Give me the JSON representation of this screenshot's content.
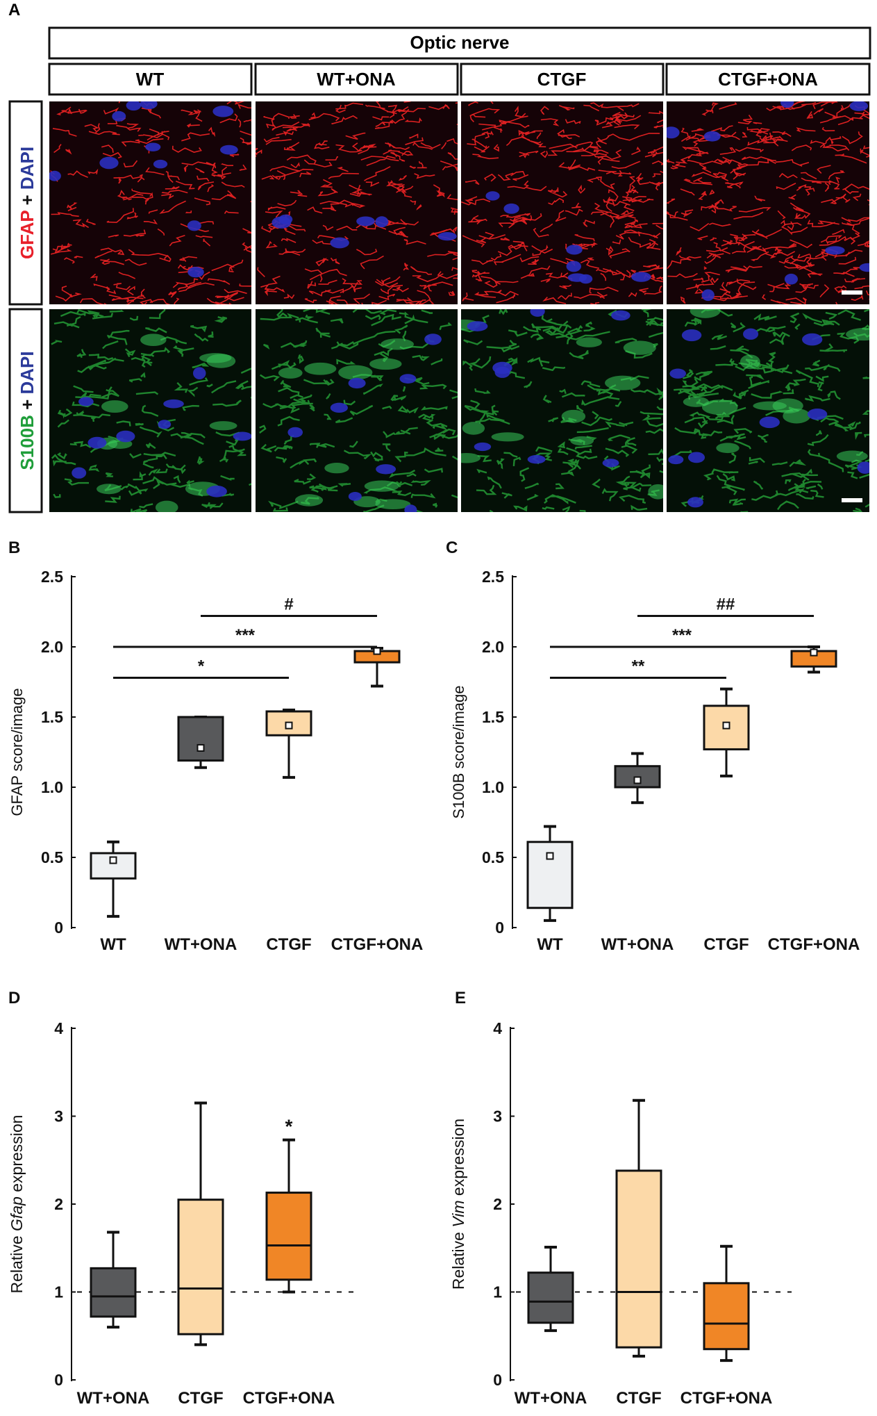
{
  "panel_a": {
    "letter": "A",
    "region_label": "Optic nerve",
    "columns": [
      "WT",
      "WT+ONA",
      "CTGF",
      "CTGF+ONA"
    ],
    "rows": [
      {
        "stain": "GFAP",
        "plus": " + ",
        "counter": "DAPI",
        "stain_color": "#e8202a",
        "counter_color": "#2b3a9a",
        "fiber_color": "#ff2626",
        "bg_color": "#150307"
      },
      {
        "stain": "S100B",
        "plus": " + ",
        "counter": "DAPI",
        "stain_color": "#1f9e3a",
        "counter_color": "#2b3a9a",
        "fiber_color": "#2ec443",
        "bg_color": "#041007"
      }
    ]
  },
  "chart_data": [
    {
      "panel": "B",
      "type": "box",
      "ylabel": "GFAP score/image",
      "ylim": [
        0,
        2.5
      ],
      "yticks": [
        0,
        0.5,
        1.0,
        1.5,
        2.0,
        2.5
      ],
      "ytick_labels": [
        "0",
        "0.5",
        "1.0",
        "1.5",
        "2.0",
        "2.5"
      ],
      "categories": [
        "WT",
        "WT+ONA",
        "CTGF",
        "CTGF+ONA"
      ],
      "boxes": [
        {
          "min": 0.08,
          "q1": 0.35,
          "q3": 0.53,
          "max": 0.61,
          "mean": 0.48,
          "color": "#eef0f2"
        },
        {
          "min": 1.14,
          "q1": 1.19,
          "q3": 1.5,
          "max": 1.5,
          "mean": 1.28,
          "color": "#58595b"
        },
        {
          "min": 1.07,
          "q1": 1.37,
          "q3": 1.54,
          "max": 1.55,
          "mean": 1.44,
          "color": "#fcd9a8"
        },
        {
          "min": 1.72,
          "q1": 1.89,
          "q3": 1.97,
          "max": 1.99,
          "mean": 1.97,
          "color": "#f08626"
        }
      ],
      "significance": [
        {
          "from": 1,
          "to": 3,
          "y": 2.22,
          "label": "#"
        },
        {
          "from": 0,
          "to": 3,
          "y": 2.0,
          "label": "***"
        },
        {
          "from": 0,
          "to": 2,
          "y": 1.78,
          "label": "*"
        }
      ]
    },
    {
      "panel": "C",
      "type": "box",
      "ylabel": "S100B score/image",
      "ylim": [
        0,
        2.5
      ],
      "yticks": [
        0,
        0.5,
        1.0,
        1.5,
        2.0,
        2.5
      ],
      "ytick_labels": [
        "0",
        "0.5",
        "1.0",
        "1.5",
        "2.0",
        "2.5"
      ],
      "categories": [
        "WT",
        "WT+ONA",
        "CTGF",
        "CTGF+ONA"
      ],
      "boxes": [
        {
          "min": 0.05,
          "q1": 0.14,
          "q3": 0.61,
          "max": 0.72,
          "mean": 0.51,
          "color": "#eef0f2"
        },
        {
          "min": 0.89,
          "q1": 1.0,
          "q3": 1.15,
          "max": 1.24,
          "mean": 1.05,
          "color": "#58595b"
        },
        {
          "min": 1.08,
          "q1": 1.27,
          "q3": 1.58,
          "max": 1.7,
          "mean": 1.44,
          "color": "#fcd9a8"
        },
        {
          "min": 1.82,
          "q1": 1.86,
          "q3": 1.97,
          "max": 2.0,
          "mean": 1.96,
          "color": "#f08626"
        }
      ],
      "significance": [
        {
          "from": 1,
          "to": 3,
          "y": 2.22,
          "label": "##"
        },
        {
          "from": 0,
          "to": 3,
          "y": 2.0,
          "label": "***"
        },
        {
          "from": 0,
          "to": 2,
          "y": 1.78,
          "label": "**"
        }
      ]
    },
    {
      "panel": "D",
      "type": "box",
      "ylabel_prefix": "Relative ",
      "ylabel_gene": "Gfap",
      "ylabel_suffix": " expression",
      "ylim": [
        0,
        4
      ],
      "yticks": [
        0,
        1,
        2,
        3,
        4
      ],
      "ytick_labels": [
        "0",
        "1",
        "2",
        "3",
        "4"
      ],
      "reference_line": 1,
      "categories": [
        "WT+ONA",
        "CTGF",
        "CTGF+ONA"
      ],
      "boxes": [
        {
          "min": 0.6,
          "q1": 0.72,
          "median": 0.95,
          "q3": 1.27,
          "max": 1.68,
          "color": "#58595b"
        },
        {
          "min": 0.4,
          "q1": 0.52,
          "median": 1.04,
          "q3": 2.05,
          "max": 3.15,
          "color": "#fcd9a8"
        },
        {
          "min": 1.0,
          "q1": 1.14,
          "median": 1.53,
          "q3": 2.13,
          "max": 2.73,
          "color": "#f08626",
          "star": "*"
        }
      ]
    },
    {
      "panel": "E",
      "type": "box",
      "ylabel_prefix": "Relative ",
      "ylabel_gene": "Vim",
      "ylabel_suffix": " expression",
      "ylim": [
        0,
        4
      ],
      "yticks": [
        0,
        1,
        2,
        3,
        4
      ],
      "ytick_labels": [
        "0",
        "1",
        "2",
        "3",
        "4"
      ],
      "reference_line": 1,
      "categories": [
        "WT+ONA",
        "CTGF",
        "CTGF+ONA"
      ],
      "boxes": [
        {
          "min": 0.56,
          "q1": 0.65,
          "median": 0.89,
          "q3": 1.22,
          "max": 1.51,
          "color": "#58595b"
        },
        {
          "min": 0.27,
          "q1": 0.37,
          "median": 1.0,
          "q3": 2.38,
          "max": 3.18,
          "color": "#fcd9a8"
        },
        {
          "min": 0.22,
          "q1": 0.35,
          "median": 0.64,
          "q3": 1.1,
          "max": 1.52,
          "color": "#f08626"
        }
      ]
    }
  ]
}
